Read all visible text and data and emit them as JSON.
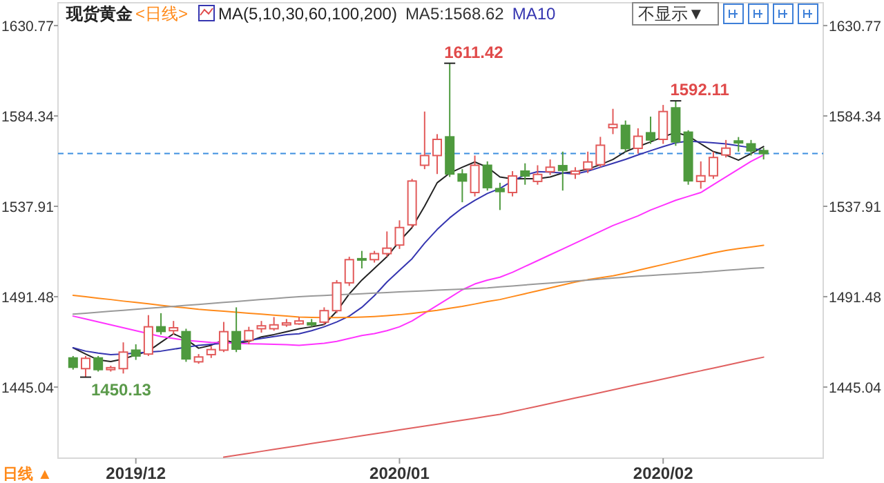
{
  "chart_data": {
    "type": "candlestick",
    "title": "现货黄金",
    "categories": [
      null,
      null,
      null,
      null,
      null,
      "2019/12",
      null,
      null,
      null,
      null,
      null,
      null,
      null,
      null,
      null,
      null,
      null,
      null,
      null,
      null,
      null,
      null,
      null,
      null,
      null,
      null,
      "2020/01",
      null,
      null,
      null,
      null,
      null,
      null,
      null,
      null,
      null,
      null,
      null,
      null,
      null,
      null,
      null,
      null,
      null,
      null,
      null,
      null,
      "2020/02",
      null,
      null,
      null,
      null,
      null,
      null,
      null,
      null
    ],
    "ohlc": [
      [
        1460,
        1461,
        1454,
        1455.2
      ],
      [
        1454.5,
        1461,
        1450.13,
        1459.8
      ],
      [
        1460,
        1461,
        1453,
        1454
      ],
      [
        1454,
        1456,
        1453,
        1455
      ],
      [
        1454.5,
        1468,
        1452,
        1463
      ],
      [
        1464,
        1467,
        1459,
        1461
      ],
      [
        1462,
        1482,
        1461,
        1476
      ],
      [
        1476,
        1483,
        1472,
        1473.6
      ],
      [
        1474,
        1479,
        1472,
        1475.5
      ],
      [
        1473.5,
        1475,
        1458,
        1459.5
      ],
      [
        1458,
        1462,
        1457,
        1460.5
      ],
      [
        1461.7,
        1466,
        1460,
        1464.3
      ],
      [
        1464,
        1478.5,
        1463,
        1473.5
      ],
      [
        1473.5,
        1486,
        1463,
        1464.5
      ],
      [
        1469,
        1476,
        1467,
        1474
      ],
      [
        1475,
        1479,
        1473,
        1476.5
      ],
      [
        1475,
        1481,
        1474,
        1477
      ],
      [
        1477,
        1480,
        1476,
        1478
      ],
      [
        1477.5,
        1481,
        1477,
        1479
      ],
      [
        1478,
        1480,
        1476,
        1477
      ],
      [
        1478.4,
        1486,
        1477,
        1484.3
      ],
      [
        1484.3,
        1500,
        1483,
        1498.6
      ],
      [
        1498.6,
        1512,
        1497,
        1510.5
      ],
      [
        1511,
        1515,
        1506,
        1510.5
      ],
      [
        1510.5,
        1515,
        1509,
        1513.6
      ],
      [
        1513.6,
        1525,
        1512,
        1516.4
      ],
      [
        1518,
        1530.7,
        1516,
        1527
      ],
      [
        1528.4,
        1552,
        1527,
        1550.9
      ],
      [
        1559,
        1586.6,
        1557,
        1564
      ],
      [
        1564,
        1575,
        1554.5,
        1572.3
      ],
      [
        1573.6,
        1611.42,
        1553,
        1554.5
      ],
      [
        1554.5,
        1557,
        1540,
        1550.9
      ],
      [
        1545,
        1564,
        1543,
        1559
      ],
      [
        1559,
        1561,
        1546,
        1547.5
      ],
      [
        1547,
        1550,
        1536,
        1545.5
      ],
      [
        1545,
        1556,
        1543,
        1553.5
      ],
      [
        1556,
        1560,
        1549,
        1553.5
      ],
      [
        1550.7,
        1559,
        1549,
        1554.3
      ],
      [
        1555.7,
        1562,
        1554,
        1558
      ],
      [
        1558.8,
        1566,
        1546,
        1556.4
      ],
      [
        1554.5,
        1558,
        1552,
        1556
      ],
      [
        1557,
        1566,
        1555,
        1560.7
      ],
      [
        1559.3,
        1573.6,
        1558,
        1569.3
      ],
      [
        1578.3,
        1588,
        1575,
        1580
      ],
      [
        1579.5,
        1582,
        1566,
        1567.6
      ],
      [
        1567.7,
        1578,
        1565,
        1573.9
      ],
      [
        1575.7,
        1584,
        1570,
        1572
      ],
      [
        1572.3,
        1590,
        1570,
        1586.6
      ],
      [
        1588.5,
        1592.11,
        1569,
        1571
      ],
      [
        1576,
        1577,
        1549,
        1551
      ],
      [
        1550.7,
        1561,
        1547,
        1553.6
      ],
      [
        1553.6,
        1566,
        1552,
        1563
      ],
      [
        1564.3,
        1572,
        1563,
        1567.8
      ],
      [
        1571.5,
        1573.5,
        1566,
        1570.5
      ],
      [
        1570,
        1572,
        1564,
        1566.4
      ],
      [
        1566.5,
        1568,
        1562,
        1565
      ]
    ],
    "colors": [
      "#4e9a3e",
      "#e25a5a",
      "#4e9a3e",
      "#e25a5a",
      "#e25a5a",
      "#4e9a3e",
      "#e25a5a",
      "#4e9a3e",
      "#e25a5a",
      "#4e9a3e",
      "#e25a5a",
      "#e25a5a",
      "#e25a5a",
      "#4e9a3e",
      "#e25a5a",
      "#e25a5a",
      "#e25a5a",
      "#e25a5a",
      "#e25a5a",
      "#4e9a3e",
      "#e25a5a",
      "#e25a5a",
      "#e25a5a",
      "#4e9a3e",
      "#e25a5a",
      "#e25a5a",
      "#e25a5a",
      "#e25a5a",
      "#e25a5a",
      "#e25a5a",
      "#4e9a3e",
      "#4e9a3e",
      "#e25a5a",
      "#4e9a3e",
      "#4e9a3e",
      "#e25a5a",
      "#4e9a3e",
      "#e25a5a",
      "#e25a5a",
      "#4e9a3e",
      "#e25a5a",
      "#e25a5a",
      "#e25a5a",
      "#e25a5a",
      "#4e9a3e",
      "#e25a5a",
      "#4e9a3e",
      "#e25a5a",
      "#4e9a3e",
      "#4e9a3e",
      "#e25a5a",
      "#e25a5a",
      "#e25a5a",
      "#4e9a3e",
      "#4e9a3e",
      "#4e9a3e"
    ],
    "series": [
      {
        "type": "line",
        "color": "#222222",
        "values": [
          1465.2,
          1462,
          1459,
          1458.1,
          1459.5,
          1461.5,
          1463.5,
          1468,
          1472.4,
          1469.5,
          1465,
          1466.5,
          1469.3,
          1467.5,
          1468.5,
          1470.8,
          1472,
          1473.5,
          1475,
          1476,
          1477.2,
          1484,
          1492.9,
          1500,
          1506,
          1512,
          1520,
          1527,
          1538,
          1550,
          1555,
          1558,
          1560.7,
          1558,
          1553,
          1552,
          1552.1,
          1552.1,
          1553,
          1555,
          1555.7,
          1557,
          1559.3,
          1562,
          1566,
          1568.6,
          1571,
          1573.6,
          1575.9,
          1574,
          1570,
          1566,
          1564.3,
          1561.6,
          1565,
          1568.62
        ]
      },
      {
        "type": "line",
        "color": "#3535b0",
        "values": [
          1465.2,
          1463.5,
          1462.5,
          1461.7,
          1462,
          1462.5,
          1463,
          1463.5,
          1464.5,
          1465.5,
          1466.5,
          1467,
          1467.5,
          1468,
          1469,
          1470,
          1471,
          1472,
          1472.4,
          1474,
          1476,
          1478.5,
          1481.5,
          1486,
          1492,
          1499,
          1505,
          1511,
          1519,
          1526,
          1532,
          1537,
          1541,
          1544.5,
          1547.1,
          1551,
          1554,
          1555.7,
          1555.5,
          1555,
          1554.5,
          1556,
          1558,
          1560,
          1562,
          1564.3,
          1566.5,
          1568.6,
          1570.5,
          1571.4,
          1571,
          1570.5,
          1570,
          1569,
          1568,
          1566.4
        ]
      },
      {
        "type": "line",
        "color": "#ff33ff",
        "values": [
          1481.5,
          1480,
          1478.5,
          1477,
          1475.5,
          1474,
          1472.5,
          1471,
          1470,
          1469,
          1468.5,
          1468,
          1467.8,
          1467.5,
          1467.3,
          1467.2,
          1467,
          1466.8,
          1466.5,
          1467,
          1467.5,
          1468.5,
          1470,
          1471.5,
          1472.5,
          1474,
          1476,
          1479,
          1483,
          1487,
          1491,
          1495,
          1498,
          1500,
          1501.5,
          1504,
          1507,
          1510,
          1513,
          1516,
          1519,
          1522,
          1525,
          1528,
          1530.5,
          1533,
          1536,
          1538.5,
          1541,
          1543,
          1545,
          1549,
          1553,
          1557,
          1561,
          1564.3
        ]
      },
      {
        "type": "line",
        "color": "#ff8a1a",
        "values": [
          1492.2,
          1491.5,
          1490.7,
          1490,
          1489.2,
          1488.5,
          1487.8,
          1487,
          1486.3,
          1485.7,
          1485,
          1484.5,
          1484,
          1483.5,
          1483,
          1482.5,
          1482,
          1481.5,
          1481,
          1480.8,
          1480.7,
          1480.7,
          1480.8,
          1481,
          1481.3,
          1481.7,
          1482.2,
          1482.9,
          1483.7,
          1484.5,
          1485.5,
          1486.5,
          1487.7,
          1489,
          1490,
          1491.5,
          1493,
          1494.5,
          1496,
          1497.5,
          1499,
          1500.2,
          1501.2,
          1502.2,
          1503.5,
          1505,
          1506.5,
          1508,
          1509.5,
          1511,
          1512.5,
          1514,
          1515.2,
          1516.2,
          1517,
          1517.9
        ]
      },
      {
        "type": "line",
        "color": "#999999",
        "values": [
          1482.5,
          1483,
          1483.5,
          1484,
          1484.5,
          1485,
          1485.5,
          1486,
          1486.5,
          1487,
          1487.5,
          1488,
          1488.5,
          1489,
          1489.5,
          1490,
          1490.5,
          1491,
          1491.5,
          1491.8,
          1492.1,
          1492.4,
          1492.7,
          1493,
          1493.3,
          1493.6,
          1493.9,
          1494.2,
          1494.5,
          1494.8,
          1495.1,
          1495.4,
          1495.7,
          1496,
          1496.5,
          1497,
          1497.5,
          1498,
          1498.5,
          1499,
          1499.5,
          1500,
          1500.5,
          1501,
          1501.5,
          1502,
          1502.4,
          1502.8,
          1503.2,
          1503.6,
          1504,
          1504.5,
          1505,
          1505.5,
          1506,
          1506.4
        ]
      },
      {
        "type": "line",
        "color": "#e06060",
        "values": [
          null,
          null,
          null,
          null,
          null,
          null,
          null,
          null,
          null,
          null,
          null,
          null,
          1409,
          1410,
          1411,
          1412,
          1413,
          1414,
          1415,
          1416,
          1417,
          1418,
          1419,
          1420,
          1421,
          1422,
          1423,
          1424,
          1425,
          1426,
          1427,
          1428,
          1429,
          1430,
          1431,
          1432.4,
          1433.8,
          1435.2,
          1436.6,
          1438,
          1439.4,
          1440.8,
          1442.2,
          1443.6,
          1445,
          1446.4,
          1447.8,
          1449.2,
          1450.6,
          1452,
          1453.4,
          1454.8,
          1456.2,
          1457.6,
          1459,
          1460.4
        ]
      }
    ],
    "ylim": [
      1408.5,
      1642.5
    ],
    "yticks": [
      1445.04,
      1491.48,
      1537.91,
      1584.34,
      1630.77
    ],
    "y2lim": [
      1408.5,
      1642.5
    ],
    "y2ticks": [
      1445.04,
      1491.48,
      1537.91,
      1584.34,
      1630.77
    ],
    "ref_lines": [
      {
        "axis": "y",
        "value": 1565,
        "color": "#3d8fe0",
        "line_style": "dashed"
      }
    ],
    "annotations": [
      "<日线>",
      "MA(5,10,30,60,100,200)",
      "MA5:1568.62",
      "MA10",
      "不显示▼",
      "日线 ▲",
      "1611.42",
      "1592.11",
      "1450.13"
    ]
  }
}
